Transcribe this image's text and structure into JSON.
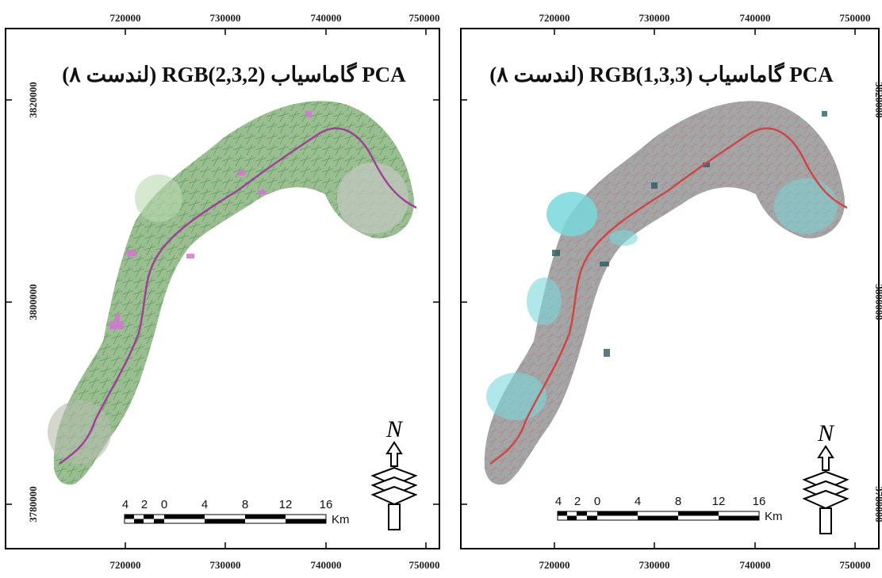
{
  "panels": [
    {
      "title": "PCA گاماسیاب RGB(2,3,2) (لندست ۸)",
      "x_ticks": [
        "720000",
        "730000",
        "740000",
        "750000"
      ],
      "y_ticks": [
        "3820000",
        "3800000",
        "3780000"
      ],
      "scale_numbers": [
        "4",
        "2",
        "0",
        "4",
        "8",
        "12",
        "16"
      ],
      "scale_unit": "Km",
      "north_label": "N",
      "palette": {
        "base": "#a9b3a0",
        "veg": "#3e9a3a",
        "river": "#a0409a",
        "patch": "#e07ae0"
      }
    },
    {
      "title": "PCA گاماسیاب RGB(1,3,3) (لندست ۸)",
      "x_ticks": [
        "720000",
        "730000",
        "740000",
        "750000"
      ],
      "y_ticks": [
        "3820000",
        "3800000",
        "3780000"
      ],
      "scale_numbers": [
        "4",
        "2",
        "0",
        "4",
        "8",
        "12",
        "16"
      ],
      "scale_unit": "Km",
      "north_label": "N",
      "palette": {
        "base": "#9aa7a6",
        "veg": "#7fd8d8",
        "river": "#d04545",
        "patch": "#2e5f66"
      }
    }
  ]
}
